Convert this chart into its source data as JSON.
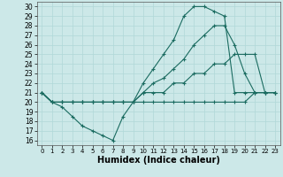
{
  "xlabel": "Humidex (Indice chaleur)",
  "xlim": [
    -0.5,
    23.5
  ],
  "ylim": [
    15.5,
    30.5
  ],
  "xticks": [
    0,
    1,
    2,
    3,
    4,
    5,
    6,
    7,
    8,
    9,
    10,
    11,
    12,
    13,
    14,
    15,
    16,
    17,
    18,
    19,
    20,
    21,
    22,
    23
  ],
  "yticks": [
    16,
    17,
    18,
    19,
    20,
    21,
    22,
    23,
    24,
    25,
    26,
    27,
    28,
    29,
    30
  ],
  "bg_color": "#cce8e8",
  "line_color": "#1a6b60",
  "grid_color": "#b0d8d8",
  "lines": [
    {
      "x": [
        0,
        1,
        2,
        3,
        4,
        5,
        6,
        7,
        8,
        9,
        10,
        11,
        12,
        13,
        14,
        15,
        16,
        17,
        18,
        19,
        20,
        21,
        22,
        23
      ],
      "y": [
        21,
        20,
        19.5,
        18.5,
        17.5,
        17,
        16.5,
        16,
        18.5,
        20,
        20,
        20,
        20,
        20,
        20,
        20,
        20,
        20,
        20,
        20,
        20,
        21,
        21,
        21
      ]
    },
    {
      "x": [
        0,
        1,
        2,
        3,
        4,
        5,
        6,
        7,
        8,
        9,
        10,
        11,
        12,
        13,
        14,
        15,
        16,
        17,
        18,
        19,
        20,
        21,
        22,
        23
      ],
      "y": [
        21,
        20,
        20,
        20,
        20,
        20,
        20,
        20,
        20,
        20,
        21,
        21,
        21,
        22,
        22,
        23,
        23,
        24,
        24,
        25,
        25,
        25,
        21,
        21
      ]
    },
    {
      "x": [
        0,
        1,
        2,
        3,
        4,
        5,
        6,
        7,
        8,
        9,
        10,
        11,
        12,
        13,
        14,
        15,
        16,
        17,
        18,
        19,
        20,
        21,
        22,
        23
      ],
      "y": [
        21,
        20,
        20,
        20,
        20,
        20,
        20,
        20,
        20,
        20,
        21,
        22,
        22.5,
        23.5,
        24.5,
        26,
        27,
        28,
        28,
        26,
        23,
        21,
        21,
        21
      ]
    },
    {
      "x": [
        0,
        1,
        2,
        3,
        4,
        5,
        6,
        7,
        8,
        9,
        10,
        11,
        12,
        13,
        14,
        15,
        16,
        17,
        18,
        19,
        20,
        21,
        22,
        23
      ],
      "y": [
        21,
        20,
        20,
        20,
        20,
        20,
        20,
        20,
        20,
        20,
        22,
        23.5,
        25,
        26.5,
        29,
        30,
        30,
        29.5,
        29,
        21,
        21,
        21,
        21,
        21
      ]
    }
  ],
  "marker": "+",
  "marker_size": 3.5,
  "line_width": 0.8,
  "font_size_label": 7,
  "font_size_tick": 5.5
}
